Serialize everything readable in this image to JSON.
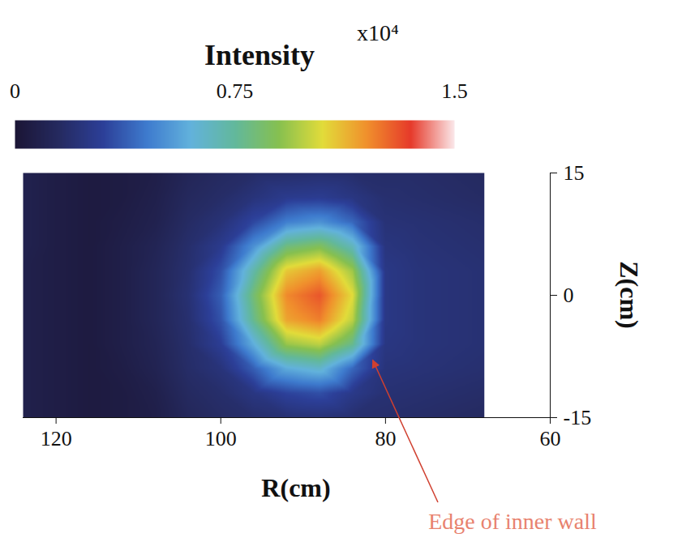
{
  "chart_data": {
    "type": "heatmap",
    "xlabel": "R(cm)",
    "ylabel": "Z(cm)",
    "xlim": [
      124,
      60
    ],
    "xticks": [
      120,
      100,
      80,
      60
    ],
    "ylim": [
      -15,
      15
    ],
    "yticks": [
      15,
      0,
      -15
    ],
    "x": [
      124,
      120,
      116,
      112,
      108,
      104,
      100,
      96,
      92,
      88,
      84,
      80,
      76,
      72,
      68
    ],
    "y": [
      15,
      12,
      9,
      6,
      3,
      0,
      -3,
      -6,
      -9,
      -12,
      -15
    ],
    "values": [
      [
        0.09,
        0.06,
        0.04,
        0.05,
        0.07,
        0.12,
        0.15,
        0.17,
        0.18,
        0.19,
        0.18,
        0.17,
        0.17,
        0.16,
        0.15
      ],
      [
        0.09,
        0.06,
        0.04,
        0.05,
        0.08,
        0.14,
        0.17,
        0.22,
        0.27,
        0.28,
        0.24,
        0.19,
        0.18,
        0.17,
        0.16
      ],
      [
        0.09,
        0.06,
        0.04,
        0.06,
        0.09,
        0.16,
        0.21,
        0.32,
        0.46,
        0.51,
        0.4,
        0.21,
        0.2,
        0.19,
        0.18
      ],
      [
        0.09,
        0.06,
        0.04,
        0.07,
        0.11,
        0.18,
        0.27,
        0.51,
        0.81,
        0.88,
        0.68,
        0.23,
        0.21,
        0.2,
        0.19
      ],
      [
        0.08,
        0.06,
        0.04,
        0.07,
        0.12,
        0.19,
        0.34,
        0.72,
        1.09,
        1.17,
        0.94,
        0.25,
        0.22,
        0.21,
        0.2
      ],
      [
        0.08,
        0.06,
        0.04,
        0.07,
        0.12,
        0.2,
        0.38,
        0.83,
        1.21,
        1.3,
        1.05,
        0.25,
        0.22,
        0.21,
        0.2
      ],
      [
        0.08,
        0.06,
        0.04,
        0.07,
        0.12,
        0.19,
        0.35,
        0.78,
        1.16,
        1.23,
        0.99,
        0.25,
        0.22,
        0.21,
        0.2
      ],
      [
        0.08,
        0.06,
        0.04,
        0.07,
        0.11,
        0.18,
        0.29,
        0.59,
        0.93,
        0.99,
        0.78,
        0.24,
        0.22,
        0.21,
        0.2
      ],
      [
        0.08,
        0.06,
        0.04,
        0.06,
        0.1,
        0.17,
        0.22,
        0.38,
        0.58,
        0.64,
        0.4,
        0.22,
        0.21,
        0.2,
        0.19
      ],
      [
        0.08,
        0.06,
        0.04,
        0.05,
        0.08,
        0.15,
        0.18,
        0.24,
        0.31,
        0.34,
        0.26,
        0.2,
        0.19,
        0.18,
        0.17
      ],
      [
        0.08,
        0.06,
        0.04,
        0.05,
        0.07,
        0.13,
        0.16,
        0.18,
        0.2,
        0.21,
        0.19,
        0.18,
        0.17,
        0.16,
        0.15
      ]
    ],
    "colorbar": {
      "label": "Intensity",
      "multiplier": "x10⁴",
      "range": [
        0,
        1.5
      ],
      "ticks": [
        0,
        0.75,
        1.5
      ]
    },
    "annotations": [
      {
        "text": "Edge of inner wall"
      }
    ]
  }
}
